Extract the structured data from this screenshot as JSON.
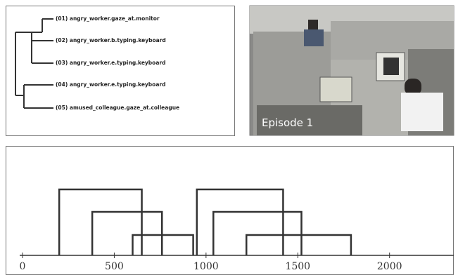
{
  "tree": {
    "labels": [
      "(01) angry_worker.gaze_at.monitor",
      "(02) angry_worker.b.typing.keyboard",
      "(03) angry_worker.e.typing.keyboard",
      "(04) angry_worker.e.typing.keyboard",
      "(05) amused_colleague.gaze_at.colleague"
    ]
  },
  "video": {
    "caption": "Episode 1"
  },
  "timeline": {
    "xlim": [
      0,
      2350
    ],
    "xticks": [
      0,
      500,
      1000,
      1500,
      2000
    ],
    "intervals": [
      {
        "start": 200,
        "end": 650,
        "level": 1
      },
      {
        "start": 380,
        "end": 760,
        "level": 2
      },
      {
        "start": 600,
        "end": 930,
        "level": 3
      },
      {
        "start": 950,
        "end": 1420,
        "level": 1
      },
      {
        "start": 1040,
        "end": 1520,
        "level": 2
      },
      {
        "start": 1220,
        "end": 1790,
        "level": 3
      }
    ]
  }
}
